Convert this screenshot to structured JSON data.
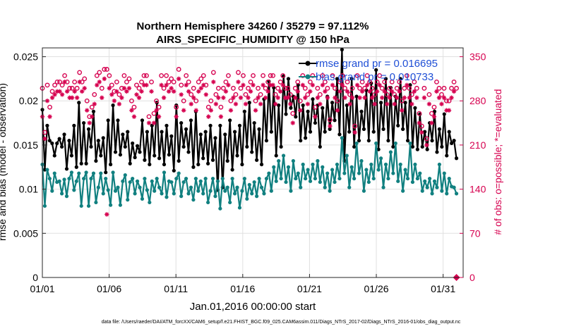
{
  "chart_data": {
    "type": "line",
    "title": "Northern Hemisphere 34260 / 35279 = 97.112%",
    "subtitle": "AIRS_SPECIFIC_HUMIDITY @ 150 hPa",
    "xlabel": "Jan.01,2016 00:00:00 start",
    "ylabel": "rmse and bias (model - observation)",
    "ylabel_right": "# of obs: o=possible; *=evaluated",
    "x_ticks": [
      "01/01",
      "01/06",
      "01/11",
      "01/16",
      "01/21",
      "01/26",
      "01/31"
    ],
    "y_ticks": [
      "0",
      "0.005",
      "0.01",
      "0.015",
      "0.02",
      "0.025"
    ],
    "y_right_ticks": [
      "0",
      "70",
      "140",
      "210",
      "280",
      "350"
    ],
    "xlim": [
      0,
      31.5
    ],
    "ylim": [
      0,
      0.026
    ],
    "ylim_right": [
      0,
      364
    ],
    "grid": true,
    "legend_position": "top-right",
    "footnote": "data file: /Users/raeder/DAI/ATM_forcXX/CAM6_setup/f.e21.FHIST_BGC.f09_025.CAM6assim.011/Diags_NTrS_2017-02/Diags_NTrS_2016-01/obs_diag_output.nc",
    "series": [
      {
        "name": "rmse grand pr = 0.016695",
        "color": "#000000",
        "marker": "dot",
        "axis": "left",
        "values": [
          0.019,
          0.0122,
          0.0172,
          0.0155,
          0.0152,
          0.0138,
          0.0152,
          0.0157,
          0.0148,
          0.0162,
          0.0123,
          0.0155,
          0.0138,
          0.0172,
          0.0125,
          0.0198,
          0.0129,
          0.0175,
          0.0129,
          0.0168,
          0.0148,
          0.0188,
          0.0132,
          0.0155,
          0.0138,
          0.0158,
          0.0119,
          0.0178,
          0.0128,
          0.0195,
          0.0142,
          0.0178,
          0.0139,
          0.0162,
          0.0148,
          0.0165,
          0.0129,
          0.0152,
          0.0136,
          0.0149,
          0.0142,
          0.0178,
          0.0133,
          0.0165,
          0.0128,
          0.0172,
          0.0138,
          0.0198,
          0.0135,
          0.0165,
          0.0128,
          0.0172,
          0.0139,
          0.016,
          0.0121,
          0.0195,
          0.0132,
          0.0175,
          0.0148,
          0.0168,
          0.0142,
          0.0178,
          0.0125,
          0.0188,
          0.0128,
          0.0162,
          0.0135,
          0.0165,
          0.0129,
          0.0172,
          0.0133,
          0.0158,
          0.0099,
          0.0172,
          0.0102,
          0.0162,
          0.0132,
          0.0178,
          0.0122,
          0.0165,
          0.0138,
          0.0172,
          0.0128,
          0.0188,
          0.0148,
          0.0198,
          0.0142,
          0.0175,
          0.0133,
          0.0168,
          0.0128,
          0.0202,
          0.0155,
          0.0222,
          0.0165,
          0.0215,
          0.0138,
          0.0195,
          0.0148,
          0.0228,
          0.0185,
          0.0225,
          0.0192,
          0.0205,
          0.0182,
          0.0218,
          0.0155,
          0.0195,
          0.0158,
          0.0188,
          0.0165,
          0.0202,
          0.0175,
          0.0195,
          0.0148,
          0.0192,
          0.0165,
          0.0205,
          0.0168,
          0.0198,
          0.0178,
          0.0225,
          0.0162,
          0.0258,
          0.0132,
          0.0195,
          0.0165,
          0.0225,
          0.0148,
          0.0205,
          0.0155,
          0.0188,
          0.0168,
          0.0212,
          0.0155,
          0.022,
          0.0165,
          0.0235,
          0.0145,
          0.0198,
          0.0168,
          0.0225,
          0.0155,
          0.0215,
          0.0148,
          0.0205,
          0.0172,
          0.0225,
          0.0168,
          0.0198,
          0.0155,
          0.0218,
          0.0148,
          0.0192,
          0.0145,
          0.0185,
          0.0148,
          0.0165,
          0.0145,
          0.0175,
          0.0155,
          0.0188,
          0.0142,
          0.0168,
          0.0148,
          0.0185,
          0.0138,
          0.0165,
          0.0152,
          0.0155,
          0.0135
        ]
      },
      {
        "name": "bias grand pr = 0.010733",
        "color": "#118080",
        "marker": "dot",
        "axis": "left",
        "values": [
          0.0128,
          0.0081,
          0.0122,
          0.0112,
          0.0098,
          0.0118,
          0.0108,
          0.0109,
          0.0095,
          0.0111,
          0.0092,
          0.0112,
          0.0119,
          0.0099,
          0.0109,
          0.0118,
          0.0081,
          0.0112,
          0.0119,
          0.0081,
          0.0112,
          0.0118,
          0.0085,
          0.0102,
          0.0118,
          0.0095,
          0.0112,
          0.0099,
          0.0082,
          0.0119,
          0.0098,
          0.0102,
          0.0082,
          0.0109,
          0.0116,
          0.0088,
          0.0108,
          0.0112,
          0.0095,
          0.0109,
          0.0102,
          0.0089,
          0.0112,
          0.0099,
          0.0085,
          0.0109,
          0.0098,
          0.0112,
          0.0102,
          0.0095,
          0.0119,
          0.0091,
          0.0109,
          0.0108,
          0.0095,
          0.0112,
          0.0118,
          0.0092,
          0.0108,
          0.0112,
          0.0095,
          0.0102,
          0.0088,
          0.0112,
          0.0098,
          0.0109,
          0.0095,
          0.0112,
          0.0085,
          0.0098,
          0.0112,
          0.0092,
          0.0109,
          0.0078,
          0.0112,
          0.0098,
          0.0102,
          0.0085,
          0.0112,
          0.0095,
          0.0102,
          0.0079,
          0.0098,
          0.0112,
          0.0089,
          0.0105,
          0.0095,
          0.0108,
          0.0092,
          0.0112,
          0.0102,
          0.0095,
          0.0112,
          0.0118,
          0.0098,
          0.0125,
          0.0109,
          0.0132,
          0.0112,
          0.0138,
          0.0108,
          0.0125,
          0.0098,
          0.0132,
          0.0112,
          0.0118,
          0.0102,
          0.0128,
          0.0112,
          0.0122,
          0.0109,
          0.0128,
          0.0112,
          0.0132,
          0.0108,
          0.0125,
          0.0102,
          0.0118,
          0.0098,
          0.0122,
          0.0108,
          0.0128,
          0.0112,
          0.0158,
          0.0118,
          0.0138,
          0.0102,
          0.0125,
          0.0112,
          0.0152,
          0.0118,
          0.0132,
          0.0098,
          0.0122,
          0.0108,
          0.0128,
          0.0112,
          0.0152,
          0.0122,
          0.0135,
          0.0102,
          0.0128,
          0.0112,
          0.0142,
          0.0118,
          0.0152,
          0.0109,
          0.0128,
          0.0098,
          0.0122,
          0.0112,
          0.0152,
          0.0108,
          0.0128,
          0.0112,
          0.0118,
          0.0098,
          0.0109,
          0.0102,
          0.0112,
          0.0095,
          0.0109,
          0.0102,
          0.0128,
          0.0098,
          0.0118,
          0.0095,
          0.0112,
          0.0103,
          0.0102,
          0.0095
        ]
      },
      {
        "name": "possible",
        "color": "#d6004f",
        "marker": "circle",
        "axis": "right",
        "values": [
          300,
          230,
          305,
          270,
          295,
          305,
          310,
          310,
          305,
          320,
          310,
          300,
          300,
          310,
          300,
          325,
          310,
          315,
          280,
          255,
          270,
          290,
          320,
          325,
          300,
          330,
          330,
          320,
          305,
          295,
          310,
          290,
          300,
          320,
          310,
          315,
          280,
          270,
          305,
          300,
          310,
          320,
          320,
          255,
          310,
          260,
          280,
          270,
          320,
          300,
          320,
          310,
          315,
          310,
          270,
          330,
          305,
          280,
          320,
          310,
          290,
          300,
          280,
          310,
          315,
          320,
          305,
          270,
          280,
          325,
          290,
          300,
          270,
          300,
          310,
          320,
          280,
          300,
          290,
          325,
          300,
          320,
          290,
          300,
          310,
          320,
          280,
          300,
          290,
          320,
          300,
          310,
          320,
          320,
          290,
          300,
          310,
          320,
          300,
          300,
          290,
          260,
          300,
          310,
          280,
          320,
          300,
          290,
          310,
          320,
          270,
          300,
          290,
          320,
          310,
          300,
          250,
          320,
          300,
          280,
          310,
          320,
          300,
          310,
          290,
          300,
          240,
          320,
          300,
          310,
          300,
          320,
          310,
          300,
          290,
          310,
          320,
          300,
          310,
          290,
          300,
          310,
          290,
          300,
          310,
          280,
          300,
          320,
          300,
          290,
          310,
          300,
          260,
          240,
          300,
          220,
          290,
          260,
          270,
          310,
          300,
          290,
          300,
          280,
          280,
          300,
          310,
          300
        ]
      },
      {
        "name": "evaluated",
        "color": "#d6004f",
        "marker": "star",
        "axis": "right",
        "values": [
          255,
          220,
          280,
          255,
          285,
          290,
          295,
          295,
          290,
          310,
          295,
          285,
          285,
          295,
          285,
          310,
          295,
          300,
          265,
          245,
          255,
          275,
          305,
          310,
          285,
          315,
          100,
          300,
          290,
          280,
          295,
          275,
          285,
          300,
          295,
          300,
          265,
          255,
          290,
          285,
          295,
          305,
          305,
          245,
          295,
          245,
          265,
          255,
          305,
          285,
          305,
          295,
          300,
          295,
          255,
          315,
          290,
          265,
          305,
          295,
          275,
          285,
          265,
          295,
          300,
          305,
          290,
          255,
          265,
          310,
          275,
          285,
          255,
          285,
          295,
          305,
          265,
          285,
          275,
          310,
          285,
          305,
          275,
          285,
          295,
          305,
          265,
          285,
          275,
          305,
          285,
          295,
          305,
          305,
          275,
          285,
          295,
          305,
          285,
          285,
          275,
          245,
          285,
          295,
          265,
          305,
          285,
          275,
          295,
          305,
          255,
          285,
          275,
          305,
          295,
          285,
          240,
          305,
          285,
          265,
          295,
          305,
          285,
          295,
          275,
          285,
          230,
          305,
          285,
          295,
          285,
          305,
          295,
          285,
          275,
          295,
          305,
          285,
          295,
          275,
          285,
          295,
          275,
          285,
          295,
          265,
          285,
          305,
          285,
          275,
          295,
          285,
          245,
          230,
          285,
          210,
          275,
          245,
          255,
          295,
          285,
          275,
          285,
          265,
          265,
          285,
          295,
          0
        ]
      }
    ]
  }
}
